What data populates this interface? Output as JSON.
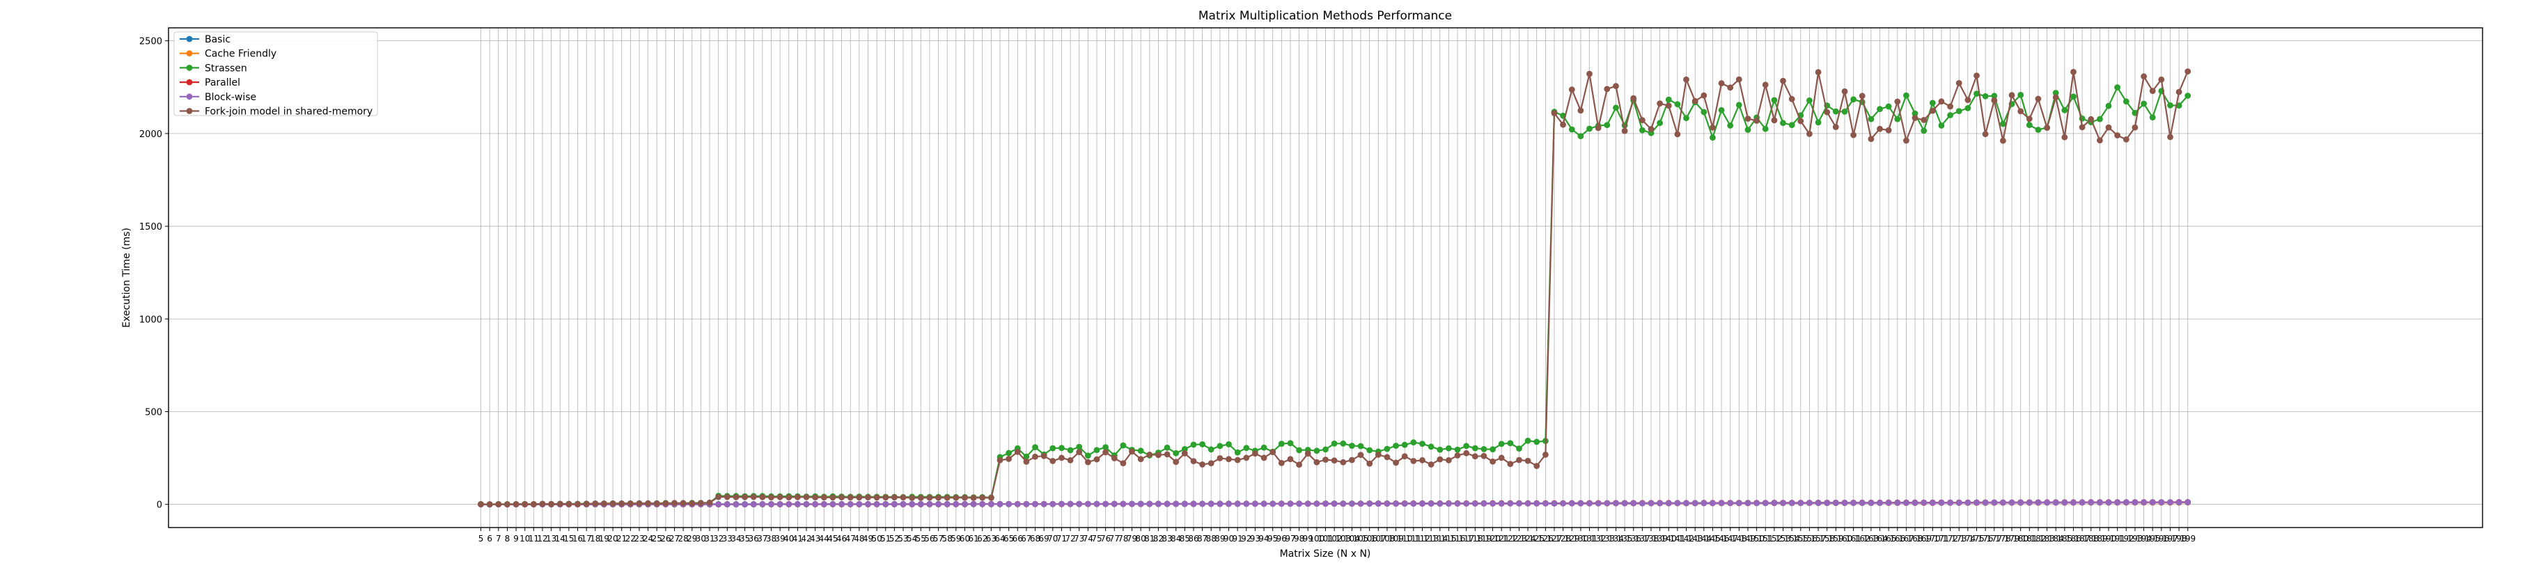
{
  "chart_data": {
    "type": "line",
    "title": "Matrix Multiplication Methods Performance",
    "xlabel": "Matrix Size (N x N)",
    "ylabel": "Execution Time (ms)",
    "xlim": [
      -30.5,
      232.5
    ],
    "ylim": [
      -125,
      2570
    ],
    "yticks": [
      0,
      500,
      1000,
      1500,
      2000,
      2500
    ],
    "grid": true,
    "legend_position": "top-left",
    "x_first": 5,
    "x_last": 199,
    "series": [
      {
        "name": "Basic",
        "color": "#1f77b4"
      },
      {
        "name": "Cache Friendly",
        "color": "#ff7f0e"
      },
      {
        "name": "Strassen",
        "color": "#2ca02c"
      },
      {
        "name": "Parallel",
        "color": "#d62728"
      },
      {
        "name": "Block-wise",
        "color": "#9467bd"
      },
      {
        "name": "Fork-join model in shared-memory",
        "color": "#8c564b"
      }
    ],
    "levels": {
      "basic": [
        [
          5,
          0
        ],
        [
          31,
          1
        ],
        [
          63,
          2
        ],
        [
          127,
          6
        ],
        [
          199,
          12
        ]
      ],
      "cache": [
        [
          5,
          0
        ],
        [
          63,
          1
        ],
        [
          127,
          5
        ],
        [
          199,
          10
        ]
      ],
      "block": [
        [
          5,
          0
        ],
        [
          63,
          1
        ],
        [
          127,
          5
        ],
        [
          199,
          11
        ]
      ],
      "parallel": [
        [
          5,
          0
        ],
        [
          63,
          1
        ],
        [
          127,
          6
        ],
        [
          199,
          12
        ]
      ],
      "strassen_segments": [
        {
          "x0": 5,
          "x1": 31,
          "y0": 0,
          "y1": 8
        },
        {
          "x0": 32,
          "x1": 63,
          "y0": 45,
          "y1": 38
        },
        {
          "x0": 64,
          "x1": 126,
          "y0": 280,
          "y1": 320
        },
        {
          "x0": 127,
          "x1": 199,
          "y0": 2060,
          "y1": 2150
        }
      ],
      "forkjoin_segments": [
        {
          "x0": 5,
          "x1": 31,
          "y0": 0,
          "y1": 8
        },
        {
          "x0": 32,
          "x1": 63,
          "y0": 40,
          "y1": 35
        },
        {
          "x0": 64,
          "x1": 126,
          "y0": 255,
          "y1": 240
        },
        {
          "x0": 127,
          "x1": 199,
          "y0": 2150,
          "y1": 2150
        }
      ]
    }
  }
}
